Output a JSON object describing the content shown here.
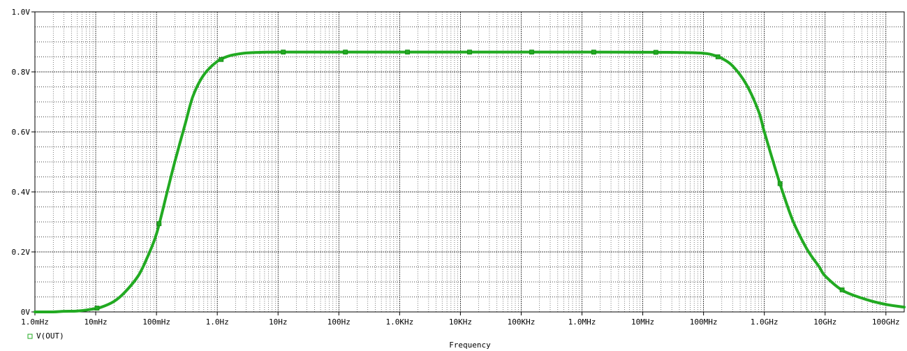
{
  "chart_data": {
    "type": "line",
    "title": "",
    "xlabel": "Frequency",
    "ylabel": "",
    "x_scale": "log",
    "xlim": [
      0.001,
      200000000000
    ],
    "ylim": [
      0,
      1.0
    ],
    "grid": true,
    "legend_position": "bottom-left",
    "x_tick_values": [
      0.001,
      0.01,
      0.1,
      1,
      10,
      100,
      1000,
      10000,
      100000,
      1000000,
      10000000,
      100000000,
      1000000000,
      10000000000,
      100000000000
    ],
    "x_tick_labels": [
      "1.0mHz",
      "10mHz",
      "100mHz",
      "1.0Hz",
      "10Hz",
      "100Hz",
      "1.0KHz",
      "10KHz",
      "100KHz",
      "1.0MHz",
      "10MHz",
      "100MHz",
      "1.0GHz",
      "10GHz",
      "100GHz"
    ],
    "y_tick_values": [
      0,
      0.2,
      0.4,
      0.6,
      0.8,
      1.0
    ],
    "y_tick_labels": [
      "0V",
      "0.2V",
      "0.4V",
      "0.6V",
      "0.8V",
      "1.0V"
    ],
    "series": [
      {
        "name": "V(OUT)",
        "color": "#22aa22",
        "x": [
          0.001,
          0.002,
          0.003,
          0.005,
          0.008,
          0.012,
          0.02,
          0.03,
          0.05,
          0.07,
          0.1,
          0.15,
          0.2,
          0.3,
          0.4,
          0.6,
          1,
          1.5,
          2,
          3,
          5,
          10,
          100,
          10000,
          1000000,
          30000000,
          100000000,
          150000000,
          200000000,
          300000000,
          500000000,
          800000000,
          1000000000,
          1500000000,
          2000000000,
          3000000000,
          5000000000,
          8000000000,
          10000000000,
          20000000000,
          50000000000,
          100000000000,
          200000000000
        ],
        "y": [
          0.0,
          0.0,
          0.002,
          0.003,
          0.008,
          0.015,
          0.035,
          0.065,
          0.12,
          0.18,
          0.26,
          0.4,
          0.5,
          0.63,
          0.72,
          0.79,
          0.835,
          0.852,
          0.858,
          0.863,
          0.865,
          0.866,
          0.866,
          0.866,
          0.866,
          0.865,
          0.862,
          0.855,
          0.845,
          0.82,
          0.76,
          0.67,
          0.6,
          0.48,
          0.4,
          0.3,
          0.21,
          0.15,
          0.12,
          0.07,
          0.04,
          0.025,
          0.016
        ]
      }
    ]
  }
}
